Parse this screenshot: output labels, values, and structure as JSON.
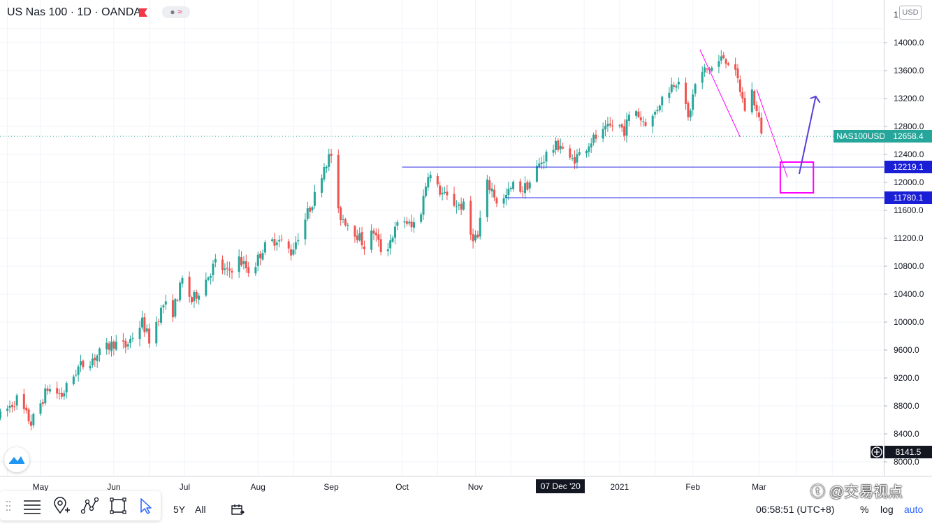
{
  "header": {
    "title": "US Nas 100 · 1D · OANDA",
    "indicator_pill": "≈",
    "currency": "USD"
  },
  "colors": {
    "up": "#26a69a",
    "down": "#ef5350",
    "grid": "#f0f3fa",
    "level_line": "#2a2ee8",
    "level_label": "#1a1fd6",
    "last_price_label": "#26a69a",
    "crosshair_label": "#131722",
    "drawing_magenta": "#ff00ff",
    "drawing_arrow": "#5b3fd9"
  },
  "chart_data": {
    "type": "candlestick",
    "symbol": "NAS100USD",
    "ylim": [
      7900,
      14300
    ],
    "y_ticks": [
      8000,
      8400,
      8800,
      9200,
      9600,
      10000,
      10400,
      10800,
      11200,
      11600,
      12000,
      12400,
      12800,
      13200,
      13600,
      14000
    ],
    "y_tick_labels": [
      "8000.0",
      "8400.0",
      "8800.0",
      "9200.0",
      "9600.0",
      "10000.0",
      "10400.0",
      "10800.0",
      "11200.0",
      "11600.0",
      "12000.0",
      "12400.0",
      "12800.0",
      "13200.0",
      "13600.0",
      "14000.0"
    ],
    "x_ticks": [
      {
        "label": "May",
        "day": 0
      },
      {
        "label": "Jun",
        "day": 31
      },
      {
        "label": "Jul",
        "day": 61
      },
      {
        "label": "Aug",
        "day": 92
      },
      {
        "label": "Sep",
        "day": 123
      },
      {
        "label": "Oct",
        "day": 153
      },
      {
        "label": "Nov",
        "day": 184
      },
      {
        "label": "2021",
        "day": 245
      },
      {
        "label": "Feb",
        "day": 276
      },
      {
        "label": "Mar",
        "day": 304
      }
    ],
    "crosshair_date": "07 Dec '20",
    "crosshair_day": 220,
    "levels": [
      {
        "value": 12219.1,
        "label": "12219.1",
        "start_day": 153
      },
      {
        "value": 11780.1,
        "label": "11780.1",
        "start_day": 197
      }
    ],
    "last_price": {
      "value": 12658.4,
      "label": "12658.4",
      "symbol_label": "NAS100USD"
    },
    "crosshair_price": "8141.5",
    "anchors": [
      [
        -17,
        8650
      ],
      [
        -10,
        8900
      ],
      [
        -4,
        8550
      ],
      [
        3,
        9050
      ],
      [
        9,
        8950
      ],
      [
        16,
        9350
      ],
      [
        23,
        9500
      ],
      [
        31,
        9700
      ],
      [
        36,
        9650
      ],
      [
        43,
        10000
      ],
      [
        46,
        9750
      ],
      [
        52,
        10250
      ],
      [
        56,
        10150
      ],
      [
        60,
        10600
      ],
      [
        64,
        10300
      ],
      [
        69,
        10550
      ],
      [
        74,
        10850
      ],
      [
        79,
        10700
      ],
      [
        84,
        10900
      ],
      [
        89,
        10700
      ],
      [
        94,
        11050
      ],
      [
        100,
        11200
      ],
      [
        106,
        11000
      ],
      [
        111,
        11400
      ],
      [
        116,
        11800
      ],
      [
        120,
        12250
      ],
      [
        123,
        12400
      ],
      [
        126,
        11550
      ],
      [
        132,
        11350
      ],
      [
        137,
        11100
      ],
      [
        141,
        11300
      ],
      [
        145,
        10950
      ],
      [
        149,
        11250
      ],
      [
        153,
        11500
      ],
      [
        157,
        11350
      ],
      [
        161,
        11600
      ],
      [
        164,
        12150
      ],
      [
        167,
        11950
      ],
      [
        171,
        11800
      ],
      [
        175,
        11700
      ],
      [
        179,
        11650
      ],
      [
        182,
        11250
      ],
      [
        185,
        11200
      ],
      [
        188,
        12000
      ],
      [
        191,
        11900
      ],
      [
        194,
        11650
      ],
      [
        197,
        11800
      ],
      [
        200,
        11950
      ],
      [
        204,
        11900
      ],
      [
        207,
        12000
      ],
      [
        210,
        12200
      ],
      [
        215,
        12450
      ],
      [
        220,
        12550
      ],
      [
        224,
        12300
      ],
      [
        228,
        12400
      ],
      [
        233,
        12600
      ],
      [
        238,
        12700
      ],
      [
        243,
        12850
      ],
      [
        247,
        12750
      ],
      [
        251,
        13100
      ],
      [
        254,
        12900
      ],
      [
        258,
        12850
      ],
      [
        262,
        13150
      ],
      [
        266,
        13350
      ],
      [
        270,
        13500
      ],
      [
        272,
        13200
      ],
      [
        274,
        12900
      ],
      [
        277,
        13400
      ],
      [
        281,
        13600
      ],
      [
        285,
        13650
      ],
      [
        289,
        13800
      ],
      [
        292,
        13700
      ],
      [
        295,
        13450
      ],
      [
        298,
        13050
      ],
      [
        301,
        13300
      ],
      [
        303,
        13000
      ],
      [
        305,
        12750
      ],
      [
        307,
        12550
      ]
    ]
  },
  "toolbar": {
    "range_5y": "5Y",
    "range_all": "All",
    "time": "06:58:51 (UTC+8)",
    "percent": "%",
    "log": "log",
    "auto": "auto"
  },
  "watermark": "ⓣ @交易视点"
}
